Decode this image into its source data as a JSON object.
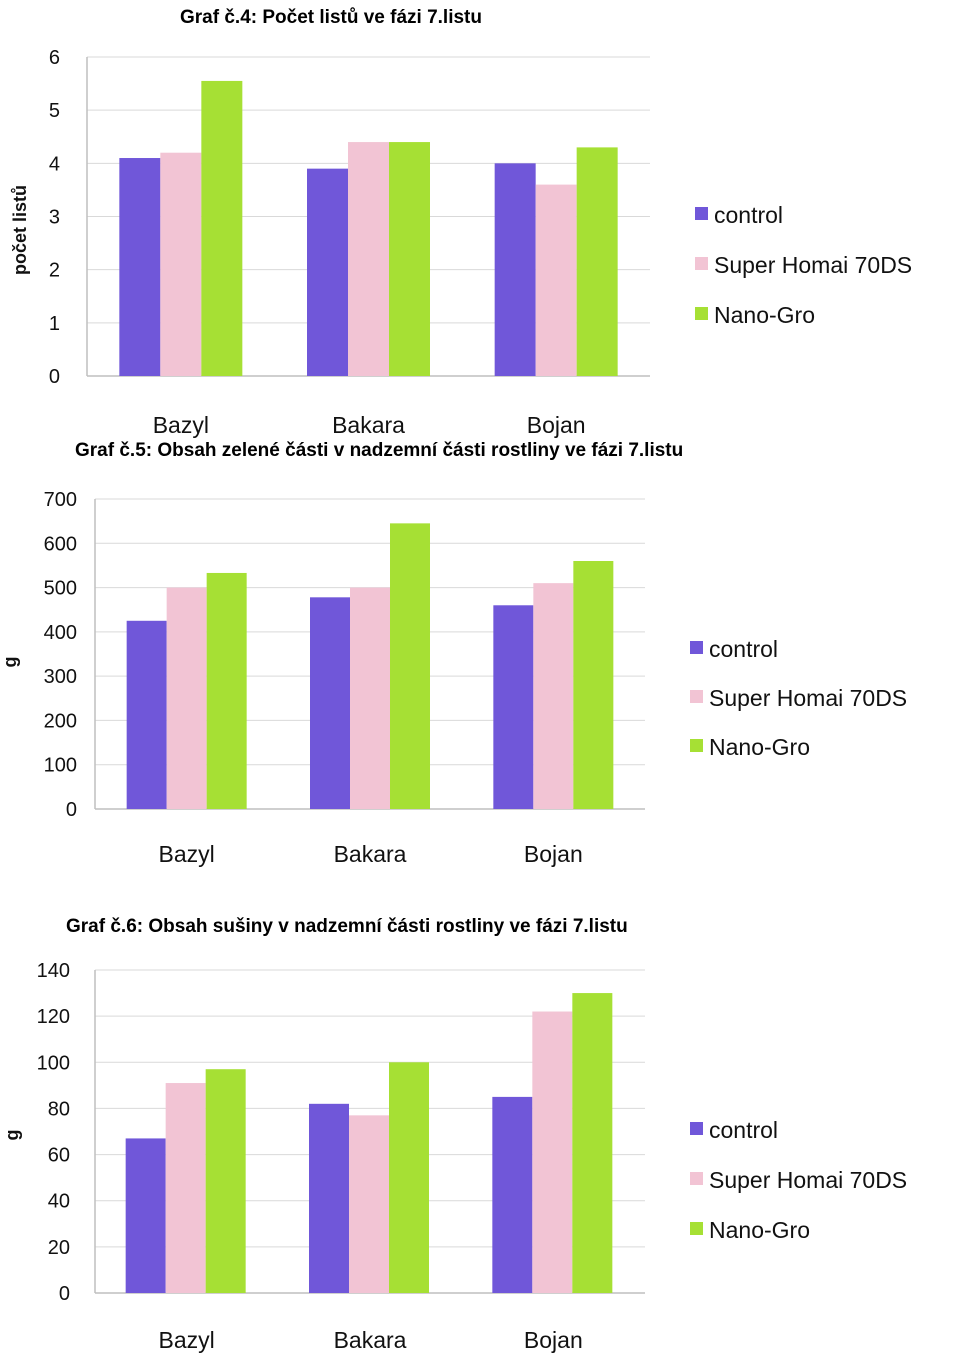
{
  "chart_data": [
    {
      "type": "bar",
      "title": "Graf č.4: Počet listů ve fázi 7.listu",
      "xlabel": "",
      "ylabel": "počet listů",
      "categories": [
        "Bazyl",
        "Bakara",
        "Bojan"
      ],
      "series": [
        {
          "name": "control",
          "values": [
            4.1,
            3.9,
            4.0
          ]
        },
        {
          "name": "Super Homai 70DS",
          "values": [
            4.2,
            4.4,
            3.6
          ]
        },
        {
          "name": "Nano-Gro",
          "values": [
            5.55,
            4.4,
            4.3
          ]
        }
      ],
      "ylim": [
        0,
        6
      ],
      "yticks": [
        0,
        1,
        2,
        3,
        4,
        5,
        6
      ],
      "grid": true,
      "legend": "right",
      "colors": [
        "#7057d9",
        "#f2c4d4",
        "#a6e034"
      ]
    },
    {
      "type": "bar",
      "title": "Graf č.5: Obsah zelené části v nadzemní části rostliny ve fázi 7.listu",
      "xlabel": "",
      "ylabel": "g",
      "categories": [
        "Bazyl",
        "Bakara",
        "Bojan"
      ],
      "series": [
        {
          "name": "control",
          "values": [
            425,
            478,
            460
          ]
        },
        {
          "name": "Super Homai 70DS",
          "values": [
            500,
            500,
            510
          ]
        },
        {
          "name": "Nano-Gro",
          "values": [
            533,
            645,
            560
          ]
        }
      ],
      "ylim": [
        0,
        700
      ],
      "yticks": [
        0,
        100,
        200,
        300,
        400,
        500,
        600,
        700
      ],
      "grid": true,
      "legend": "right",
      "colors": [
        "#7057d9",
        "#f2c4d4",
        "#a6e034"
      ]
    },
    {
      "type": "bar",
      "title": "Graf č.6: Obsah sušiny v nadzemní části rostliny ve fázi 7.listu",
      "xlabel": "",
      "ylabel": "g",
      "categories": [
        "Bazyl",
        "Bakara",
        "Bojan"
      ],
      "series": [
        {
          "name": "control",
          "values": [
            67,
            82,
            85
          ]
        },
        {
          "name": "Super Homai 70DS",
          "values": [
            91,
            77,
            122
          ]
        },
        {
          "name": "Nano-Gro",
          "values": [
            97,
            100,
            130
          ]
        }
      ],
      "ylim": [
        0,
        140
      ],
      "yticks": [
        0,
        20,
        40,
        60,
        80,
        100,
        120,
        140
      ],
      "grid": true,
      "legend": "right",
      "colors": [
        "#7057d9",
        "#f2c4d4",
        "#a6e034"
      ]
    }
  ]
}
